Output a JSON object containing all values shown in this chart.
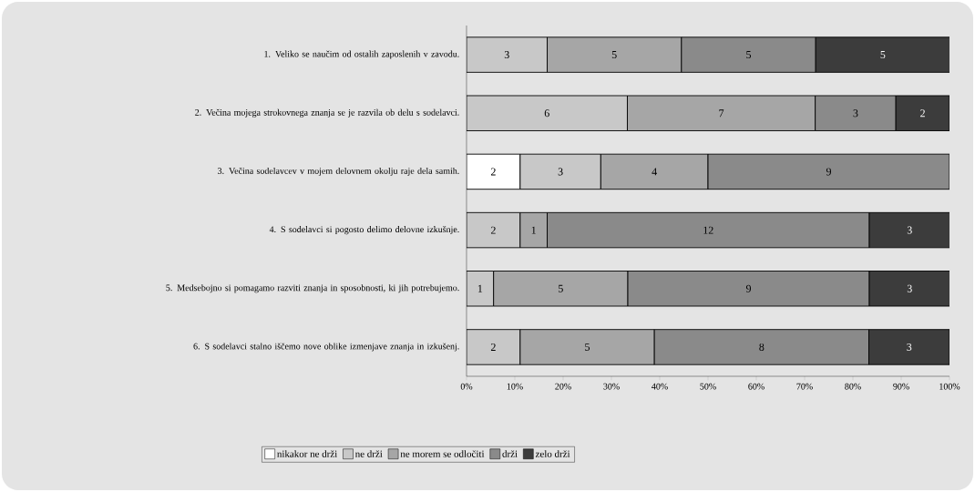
{
  "chart_data": {
    "type": "bar",
    "orientation": "horizontal",
    "stacked": true,
    "categories": [
      "1. Veliko se naučim od ostalih zaposlenih v zavodu.",
      "2. Večina mojega strokovnega znanja se je razvila ob delu s sodelavci.",
      "3. Večina sodelavcev v mojem delovnem okolju raje dela samih.",
      "4. S sodelavci si pogosto delimo delovne izkušnje.",
      "5. Medsebojno si pomagamo razviti znanja in sposobnosti, ki jih potrebujemo.",
      "6. S sodelavci stalno iščemo nove oblike izmenjave znanja in izkušenj."
    ],
    "series": [
      {
        "name": "nikakor ne drži",
        "color": "#ffffff",
        "values": [
          null,
          null,
          11.1,
          null,
          null,
          null
        ]
      },
      {
        "name": "ne drži",
        "color": "#c8c8c8",
        "values": [
          16.7,
          33.3,
          16.7,
          11.1,
          5.6,
          11.1
        ]
      },
      {
        "name": "ne morem se odločiti",
        "color": "#a6a6a6",
        "values": [
          27.8,
          38.9,
          22.2,
          5.6,
          27.8,
          27.8
        ]
      },
      {
        "name": "drži",
        "color": "#8a8a8a",
        "values": [
          27.8,
          16.7,
          50.0,
          66.7,
          50.0,
          44.4
        ]
      },
      {
        "name": "zelo drži",
        "color": "#3c3c3c",
        "values": [
          27.8,
          11.1,
          null,
          16.7,
          16.7,
          16.7
        ]
      }
    ],
    "annotations": [
      "3",
      "5",
      "5",
      "5",
      "6",
      "7",
      "3",
      "2",
      "2",
      "3",
      "4",
      "9",
      "2",
      "1",
      "12",
      "3",
      "1",
      "5",
      "9",
      "3",
      "2",
      "5",
      "8",
      "3"
    ],
    "xlim": [
      0,
      100
    ],
    "xticks": [
      {
        "value": 0,
        "label": "0%"
      },
      {
        "value": 10,
        "label": "10%"
      },
      {
        "value": 20,
        "label": "20%"
      },
      {
        "value": 30,
        "label": "30%"
      },
      {
        "value": 40,
        "label": "40%"
      },
      {
        "value": 50,
        "label": "50%"
      },
      {
        "value": 60,
        "label": "60%"
      },
      {
        "value": 70,
        "label": "70%"
      },
      {
        "value": 80,
        "label": "80%"
      },
      {
        "value": 90,
        "label": "90%"
      },
      {
        "value": 100,
        "label": "100%"
      }
    ],
    "legend": "bottom"
  }
}
